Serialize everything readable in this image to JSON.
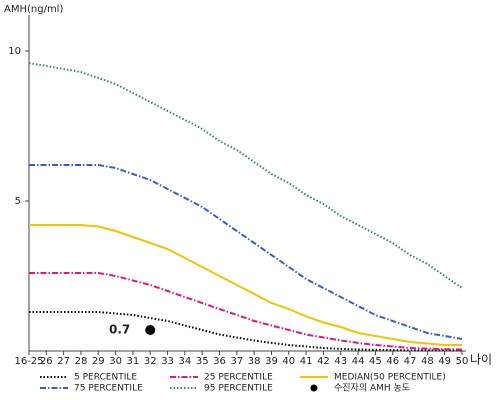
{
  "chart_data": {
    "type": "line",
    "y_label": "AMH(ng/ml)",
    "x_label": "나이",
    "categories": [
      "16-25",
      "26",
      "27",
      "28",
      "29",
      "30",
      "31",
      "32",
      "33",
      "34",
      "35",
      "36",
      "37",
      "38",
      "39",
      "40",
      "41",
      "42",
      "43",
      "44",
      "45",
      "46",
      "47",
      "48",
      "49",
      "50"
    ],
    "ylim": [
      0,
      11.2
    ],
    "yticks": [
      5,
      10
    ],
    "series": [
      {
        "name": "5 PERCENTILE",
        "color": "#000000",
        "style": "dotted",
        "values": [
          1.3,
          1.3,
          1.3,
          1.3,
          1.3,
          1.25,
          1.2,
          1.1,
          1.0,
          0.85,
          0.7,
          0.55,
          0.45,
          0.35,
          0.27,
          0.2,
          0.15,
          0.1,
          0.07,
          0.05,
          0.04,
          0.03,
          0.02,
          0.02,
          0.02,
          0.02
        ]
      },
      {
        "name": "25 PERCENTILE",
        "color": "#e0158a",
        "style": "dashdot",
        "values": [
          2.6,
          2.6,
          2.6,
          2.6,
          2.6,
          2.5,
          2.35,
          2.2,
          2.0,
          1.8,
          1.6,
          1.4,
          1.2,
          1.0,
          0.85,
          0.7,
          0.55,
          0.45,
          0.35,
          0.27,
          0.2,
          0.15,
          0.1,
          0.08,
          0.06,
          0.05
        ]
      },
      {
        "name": "MEDIAN(50 PERCENTILE)",
        "color": "#f2c500",
        "style": "solid",
        "values": [
          4.2,
          4.2,
          4.2,
          4.2,
          4.15,
          4.0,
          3.8,
          3.6,
          3.4,
          3.1,
          2.8,
          2.5,
          2.2,
          1.9,
          1.6,
          1.4,
          1.15,
          0.95,
          0.8,
          0.6,
          0.5,
          0.4,
          0.3,
          0.25,
          0.2,
          0.2
        ]
      },
      {
        "name": "75 PERCENTILE",
        "color": "#3a5fcd",
        "style": "dashdot",
        "values": [
          6.2,
          6.2,
          6.2,
          6.2,
          6.2,
          6.1,
          5.9,
          5.7,
          5.4,
          5.1,
          4.8,
          4.4,
          4.0,
          3.6,
          3.2,
          2.8,
          2.4,
          2.1,
          1.8,
          1.5,
          1.2,
          1.0,
          0.8,
          0.6,
          0.5,
          0.4
        ]
      },
      {
        "name": "95 PERCENTILE",
        "color": "#2e8b57",
        "style": "dotted",
        "values": [
          9.6,
          9.5,
          9.4,
          9.3,
          9.1,
          8.9,
          8.6,
          8.3,
          8.0,
          7.7,
          7.4,
          7.0,
          6.7,
          6.3,
          5.9,
          5.6,
          5.2,
          4.9,
          4.5,
          4.2,
          3.9,
          3.6,
          3.2,
          2.9,
          2.5,
          2.1
        ]
      }
    ],
    "highlight": {
      "name": "수진자의 AMH 농도",
      "category": "32",
      "value": 0.7,
      "color": "#000000"
    }
  }
}
